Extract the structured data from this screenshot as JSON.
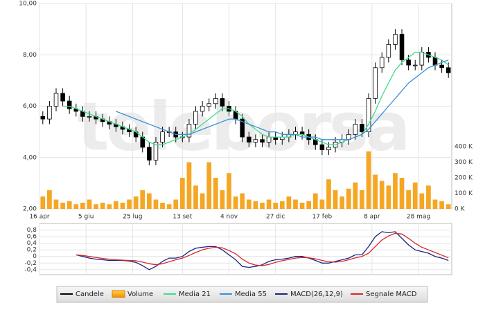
{
  "chart_data": [
    {
      "type": "candlestick",
      "watermark": "teleborsa",
      "xlim": [
        0,
        62
      ],
      "xticks": [
        {
          "value": 0,
          "label": "16 apr"
        },
        {
          "value": 7,
          "label": "5 giu"
        },
        {
          "value": 14,
          "label": "25 lug"
        },
        {
          "value": 21.5,
          "label": "13 set"
        },
        {
          "value": 28.5,
          "label": "4 nov"
        },
        {
          "value": 35.5,
          "label": "27 dic"
        },
        {
          "value": 42.5,
          "label": "17 feb"
        },
        {
          "value": 50,
          "label": "8 apr"
        },
        {
          "value": 57,
          "label": "28 mag"
        }
      ],
      "ylim": [
        2,
        10
      ],
      "yticks": [
        {
          "value": 2,
          "label": "2,00"
        },
        {
          "value": 4,
          "label": "4,00"
        },
        {
          "value": 6,
          "label": "6,00"
        },
        {
          "value": 8,
          "label": "8,00"
        },
        {
          "value": 10,
          "label": "10,00"
        }
      ],
      "y2lim": [
        0,
        400000
      ],
      "y2ticks": [
        {
          "value": 0,
          "label": "0 K"
        },
        {
          "value": 100000,
          "label": "100 K"
        },
        {
          "value": 200000,
          "label": "200 K"
        },
        {
          "value": 300000,
          "label": "300 K"
        },
        {
          "value": 400000,
          "label": "400 K"
        }
      ],
      "grid": true,
      "candles": {
        "name": "Candele",
        "color": "#000000",
        "open": [
          5.6,
          5.5,
          6.0,
          6.5,
          6.2,
          5.9,
          5.8,
          5.6,
          5.6,
          5.5,
          5.4,
          5.3,
          5.2,
          5.1,
          5.0,
          4.8,
          4.4,
          3.9,
          4.6,
          5.0,
          5.0,
          4.8,
          4.8,
          5.3,
          5.8,
          6.0,
          6.1,
          6.3,
          6.0,
          5.8,
          5.5,
          4.8,
          4.6,
          4.7,
          4.6,
          4.8,
          4.7,
          4.8,
          4.9,
          5.0,
          4.9,
          4.7,
          4.5,
          4.3,
          4.4,
          4.6,
          4.7,
          4.9,
          5.3,
          5.0,
          6.3,
          7.5,
          7.9,
          8.4,
          8.8,
          7.8,
          7.6,
          7.6,
          8.1,
          7.9,
          7.6,
          7.5
        ],
        "high": [
          5.8,
          6.2,
          6.7,
          6.7,
          6.4,
          6.1,
          6.0,
          5.8,
          5.8,
          5.7,
          5.6,
          5.5,
          5.4,
          5.3,
          5.2,
          5.0,
          4.6,
          4.8,
          5.2,
          5.2,
          5.2,
          5.0,
          5.5,
          6.0,
          6.2,
          6.3,
          6.5,
          6.5,
          6.2,
          6.0,
          5.7,
          5.0,
          4.9,
          4.9,
          5.0,
          5.0,
          5.0,
          5.1,
          5.2,
          5.2,
          5.1,
          4.9,
          4.7,
          4.6,
          4.8,
          4.9,
          5.1,
          5.5,
          5.5,
          6.5,
          7.7,
          8.1,
          8.6,
          9.0,
          9.0,
          8.0,
          7.8,
          8.3,
          8.3,
          8.1,
          7.8,
          7.7
        ],
        "low": [
          5.3,
          5.3,
          5.8,
          6.0,
          5.7,
          5.6,
          5.4,
          5.4,
          5.3,
          5.2,
          5.1,
          5.0,
          4.9,
          4.8,
          4.6,
          4.2,
          3.7,
          3.7,
          4.4,
          4.8,
          4.6,
          4.6,
          4.6,
          5.1,
          5.6,
          5.8,
          5.9,
          5.8,
          5.6,
          5.3,
          4.6,
          4.4,
          4.4,
          4.4,
          4.4,
          4.5,
          4.5,
          4.6,
          4.7,
          4.7,
          4.5,
          4.3,
          4.1,
          4.1,
          4.2,
          4.4,
          4.5,
          4.7,
          4.8,
          4.8,
          6.1,
          7.3,
          7.7,
          8.2,
          7.6,
          7.4,
          7.4,
          7.4,
          7.7,
          7.4,
          7.3,
          7.1
        ],
        "close": [
          5.5,
          6.0,
          6.5,
          6.2,
          5.9,
          5.8,
          5.6,
          5.6,
          5.5,
          5.4,
          5.3,
          5.2,
          5.1,
          5.0,
          4.8,
          4.4,
          3.9,
          4.6,
          5.0,
          5.0,
          4.8,
          4.8,
          5.3,
          5.8,
          6.0,
          6.1,
          6.3,
          6.0,
          5.8,
          5.5,
          4.8,
          4.6,
          4.7,
          4.6,
          4.8,
          4.7,
          4.8,
          4.9,
          5.0,
          4.9,
          4.7,
          4.5,
          4.3,
          4.4,
          4.6,
          4.7,
          4.9,
          5.3,
          5.0,
          6.3,
          7.5,
          7.9,
          8.4,
          8.8,
          7.8,
          7.6,
          7.6,
          8.1,
          7.9,
          7.6,
          7.5,
          7.3
        ]
      },
      "series": [
        {
          "name": "Volume",
          "type": "bar",
          "axis": "y2",
          "color": "#f5a623",
          "values": [
            80000,
            120000,
            60000,
            40000,
            50000,
            30000,
            40000,
            60000,
            30000,
            40000,
            30000,
            50000,
            40000,
            60000,
            80000,
            120000,
            100000,
            60000,
            40000,
            30000,
            60000,
            200000,
            300000,
            150000,
            100000,
            300000,
            200000,
            120000,
            230000,
            80000,
            100000,
            60000,
            50000,
            40000,
            60000,
            40000,
            50000,
            80000,
            60000,
            40000,
            50000,
            100000,
            60000,
            190000,
            120000,
            80000,
            130000,
            170000,
            120000,
            370000,
            220000,
            180000,
            150000,
            230000,
            200000,
            120000,
            170000,
            100000,
            150000,
            60000,
            50000,
            30000
          ]
        },
        {
          "name": "Media 21",
          "type": "line",
          "color": "#3fdc8c",
          "values": [
            null,
            null,
            null,
            6.0,
            6.0,
            5.9,
            5.8,
            5.7,
            5.6,
            5.5,
            5.4,
            5.3,
            5.2,
            5.1,
            5.0,
            4.8,
            4.6,
            4.5,
            4.5,
            4.6,
            4.7,
            4.8,
            4.9,
            5.1,
            5.3,
            5.5,
            5.7,
            5.9,
            5.9,
            5.8,
            5.6,
            5.3,
            5.1,
            4.9,
            4.8,
            4.8,
            4.8,
            4.8,
            4.9,
            4.9,
            4.8,
            4.7,
            4.6,
            4.5,
            4.5,
            4.6,
            4.7,
            4.8,
            4.9,
            5.3,
            5.8,
            6.4,
            6.9,
            7.4,
            7.7,
            7.9,
            8.1,
            8.1,
            8.0,
            7.9,
            7.8,
            7.6
          ]
        },
        {
          "name": "Media 55",
          "type": "line",
          "color": "#3a8fd8",
          "values": [
            null,
            null,
            null,
            null,
            null,
            null,
            null,
            null,
            null,
            null,
            null,
            5.8,
            5.7,
            5.6,
            5.5,
            5.4,
            5.3,
            5.2,
            5.1,
            5.0,
            4.9,
            4.9,
            4.9,
            5.0,
            5.1,
            5.2,
            5.3,
            5.4,
            5.5,
            5.5,
            5.4,
            5.3,
            5.2,
            5.1,
            5.0,
            5.0,
            4.9,
            4.9,
            4.9,
            4.8,
            4.8,
            4.8,
            4.7,
            4.7,
            4.7,
            4.7,
            4.7,
            4.8,
            4.9,
            5.1,
            5.4,
            5.7,
            6.0,
            6.3,
            6.6,
            6.9,
            7.1,
            7.3,
            7.5,
            7.6,
            7.7,
            7.8
          ]
        }
      ]
    },
    {
      "type": "line",
      "xlim": [
        0,
        62
      ],
      "ylim": [
        -0.55,
        1.0
      ],
      "yticks": [
        {
          "value": -0.4,
          "label": "-0,4"
        },
        {
          "value": -0.2,
          "label": "-0,2"
        },
        0,
        {
          "value": 0.2,
          "label": "0,2"
        },
        {
          "value": 0.4,
          "label": "0,4"
        },
        {
          "value": 0.6,
          "label": "0,6"
        },
        {
          "value": 0.8,
          "label": "0,8"
        }
      ],
      "grid": true,
      "series": [
        {
          "name": "MACD(26,12,9)",
          "color": "#1a237e",
          "values": [
            null,
            null,
            null,
            null,
            null,
            0.05,
            0.0,
            -0.05,
            -0.08,
            -0.1,
            -0.12,
            -0.12,
            -0.12,
            -0.14,
            -0.18,
            -0.28,
            -0.4,
            -0.3,
            -0.15,
            -0.05,
            -0.05,
            0.0,
            0.15,
            0.25,
            0.28,
            0.3,
            0.3,
            0.2,
            0.05,
            -0.1,
            -0.3,
            -0.33,
            -0.3,
            -0.25,
            -0.15,
            -0.1,
            -0.08,
            -0.05,
            0.0,
            0.0,
            -0.05,
            -0.12,
            -0.2,
            -0.2,
            -0.15,
            -0.1,
            -0.05,
            0.05,
            0.05,
            0.3,
            0.6,
            0.75,
            0.72,
            0.75,
            0.55,
            0.35,
            0.2,
            0.15,
            0.1,
            0.0,
            -0.05,
            -0.12
          ]
        },
        {
          "name": "Segnale MACD",
          "color": "#d62728",
          "values": [
            null,
            null,
            null,
            null,
            null,
            0.05,
            0.03,
            0.0,
            -0.03,
            -0.06,
            -0.08,
            -0.1,
            -0.11,
            -0.12,
            -0.13,
            -0.17,
            -0.22,
            -0.25,
            -0.22,
            -0.16,
            -0.1,
            -0.05,
            0.03,
            0.12,
            0.2,
            0.25,
            0.28,
            0.26,
            0.18,
            0.08,
            -0.08,
            -0.2,
            -0.26,
            -0.28,
            -0.24,
            -0.18,
            -0.13,
            -0.09,
            -0.05,
            -0.03,
            -0.04,
            -0.07,
            -0.12,
            -0.16,
            -0.17,
            -0.15,
            -0.1,
            -0.04,
            0.0,
            0.1,
            0.3,
            0.5,
            0.62,
            0.7,
            0.68,
            0.55,
            0.4,
            0.28,
            0.2,
            0.12,
            0.04,
            -0.04
          ]
        }
      ]
    }
  ]
}
